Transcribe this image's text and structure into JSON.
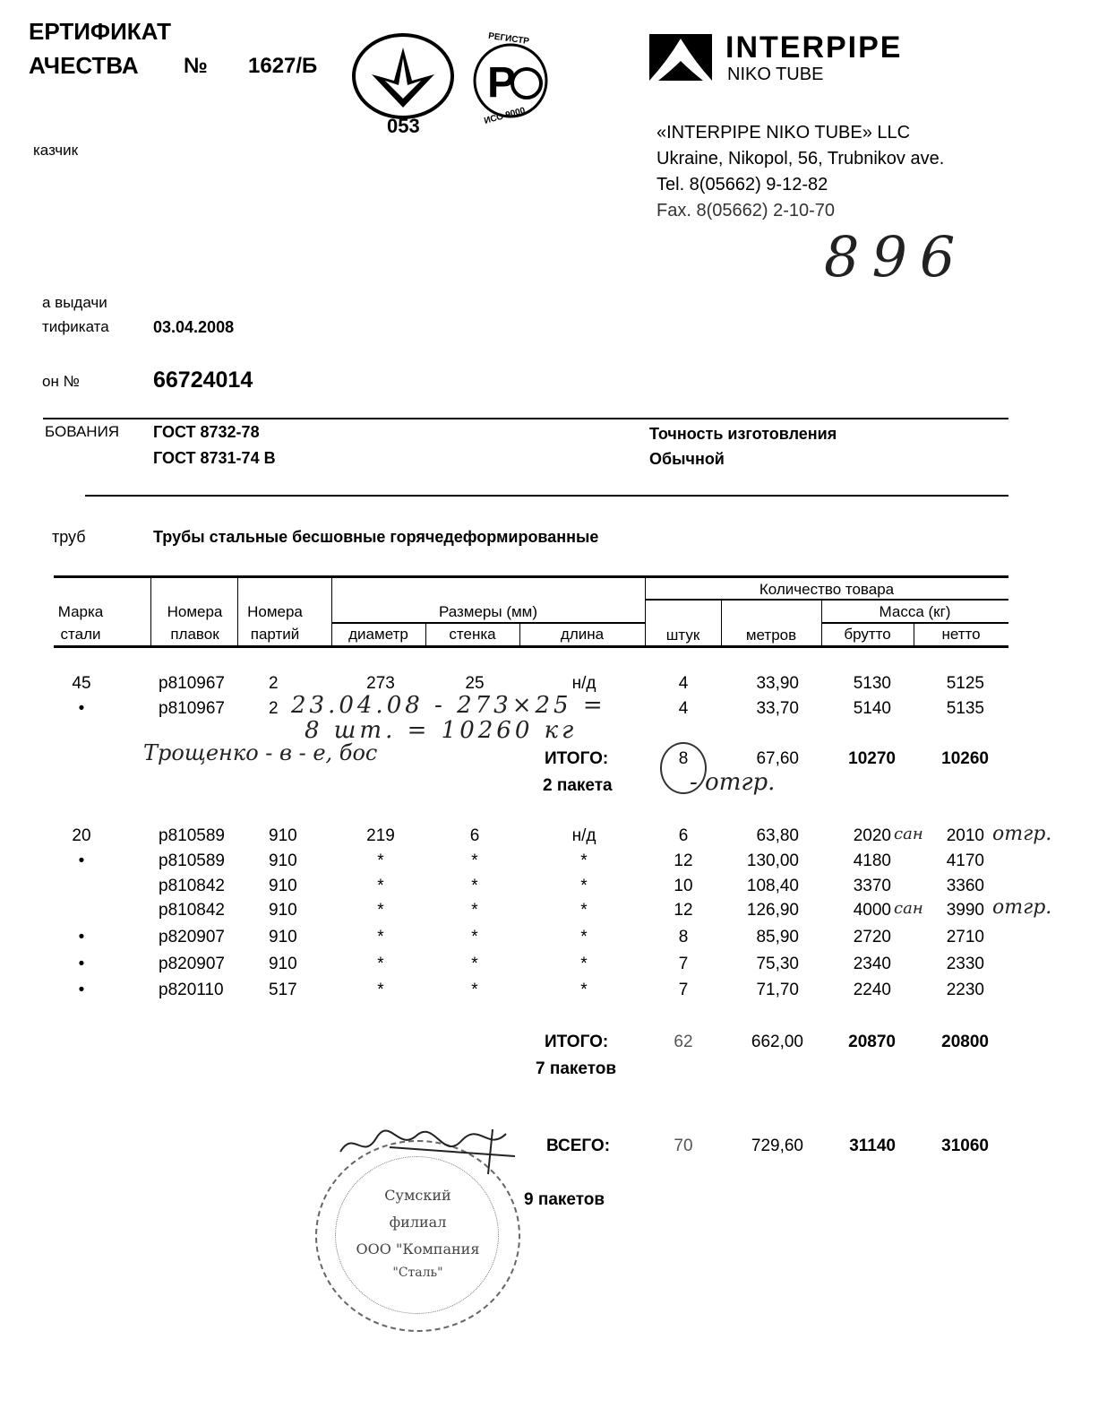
{
  "header": {
    "title_line1": "ЕРТИФИКАТ",
    "title_line2": "АЧЕСТВА",
    "number_sign": "№",
    "number": "1627/Б",
    "cert_mark_code": "053",
    "rst_top": "РЕГИСТР",
    "rst_bottom": "ИСО 9000",
    "customer_label": "казчик"
  },
  "company": {
    "logo_name": "INTERPIPE",
    "logo_sub": "NIKO TUBE",
    "name": "«INTERPIPE NIKO TUBE» LLC",
    "address": "Ukraine, Nikopol, 56, Trubnikov ave.",
    "tel": "Tel. 8(05662) 9-12-82",
    "fax": "Fax. 8(05662) 2-10-70",
    "handwritten_number": "896"
  },
  "info": {
    "issue_label1": "а выдачи",
    "issue_label2": "тификата",
    "issue_date": "03.04.2008",
    "wagon_label": "он №",
    "wagon_number": "66724014",
    "req_label": "БОВАНИЯ",
    "req1": "ГОСТ 8732-78",
    "req2": "ГОСТ 8731-74  В",
    "accuracy_label": "Точность изготовления",
    "accuracy_value": "Обычной",
    "pipe_label": "труб",
    "pipe_value": "Трубы стальные бесшовные горячедеформированные"
  },
  "table": {
    "headers": {
      "grade1": "Марка",
      "grade2": "стали",
      "heat1": "Номера",
      "heat2": "плавок",
      "lot1": "Номера",
      "lot2": "партий",
      "sizes": "Размеры (мм)",
      "diameter": "диаметр",
      "wall": "стенка",
      "length": "длина",
      "quantity": "Количество товара",
      "pieces": "штук",
      "meters": "метров",
      "mass": "Масса (кг)",
      "gross": "брутто",
      "net": "нетто"
    },
    "rows": [
      [
        "45",
        "p810967",
        "2",
        "273",
        "25",
        "н/д",
        "4",
        "33,90",
        "5130",
        "5125"
      ],
      [
        "•",
        "p810967",
        "2",
        "",
        "",
        "",
        "4",
        "33,70",
        "5140",
        "5135"
      ],
      [
        "20",
        "p810589",
        "910",
        "219",
        "6",
        "н/д",
        "6",
        "63,80",
        "2020",
        "2010"
      ],
      [
        "•",
        "p810589",
        "910",
        "*",
        "*",
        "*",
        "12",
        "130,00",
        "4180",
        "4170"
      ],
      [
        "",
        "p810842",
        "910",
        "*",
        "*",
        "*",
        "10",
        "108,40",
        "3370",
        "3360"
      ],
      [
        "",
        "p810842",
        "910",
        "*",
        "*",
        "*",
        "12",
        "126,90",
        "4000",
        "3990"
      ],
      [
        "•",
        "p820907",
        "910",
        "*",
        "*",
        "*",
        "8",
        "85,90",
        "2720",
        "2710"
      ],
      [
        "•",
        "p820907",
        "910",
        "*",
        "*",
        "*",
        "7",
        "75,30",
        "2340",
        "2330"
      ],
      [
        "•",
        "p820110",
        "517",
        "*",
        "*",
        "*",
        "7",
        "71,70",
        "2240",
        "2230"
      ]
    ],
    "subtotal1": {
      "label": "ИТОГО:",
      "packs": "2 пакета",
      "pieces": "8",
      "meters": "67,60",
      "gross": "10270",
      "net": "10260"
    },
    "subtotal2": {
      "label": "ИТОГО:",
      "packs": "7 пакетов",
      "pieces": "62",
      "meters": "662,00",
      "gross": "20870",
      "net": "20800"
    },
    "total": {
      "label": "ВСЕГО:",
      "packs": "9 пакетов",
      "pieces": "70",
      "meters": "729,60",
      "gross": "31140",
      "net": "31060"
    }
  },
  "handwriting": {
    "note1": "23.04.08 - 273×25 =",
    "note2": "8 шт. = 10260 кг",
    "note3": "Трощенко - в - е, бос",
    "note4": "- отгр.",
    "san1": "сан",
    "otgr1": "отгр.",
    "san2": "сан",
    "otgr2": "отгр."
  },
  "stamp": {
    "line1": "Сумский",
    "line2": "филиал",
    "line3": "ООО \"Компания",
    "line4": "\"Сталь\""
  }
}
